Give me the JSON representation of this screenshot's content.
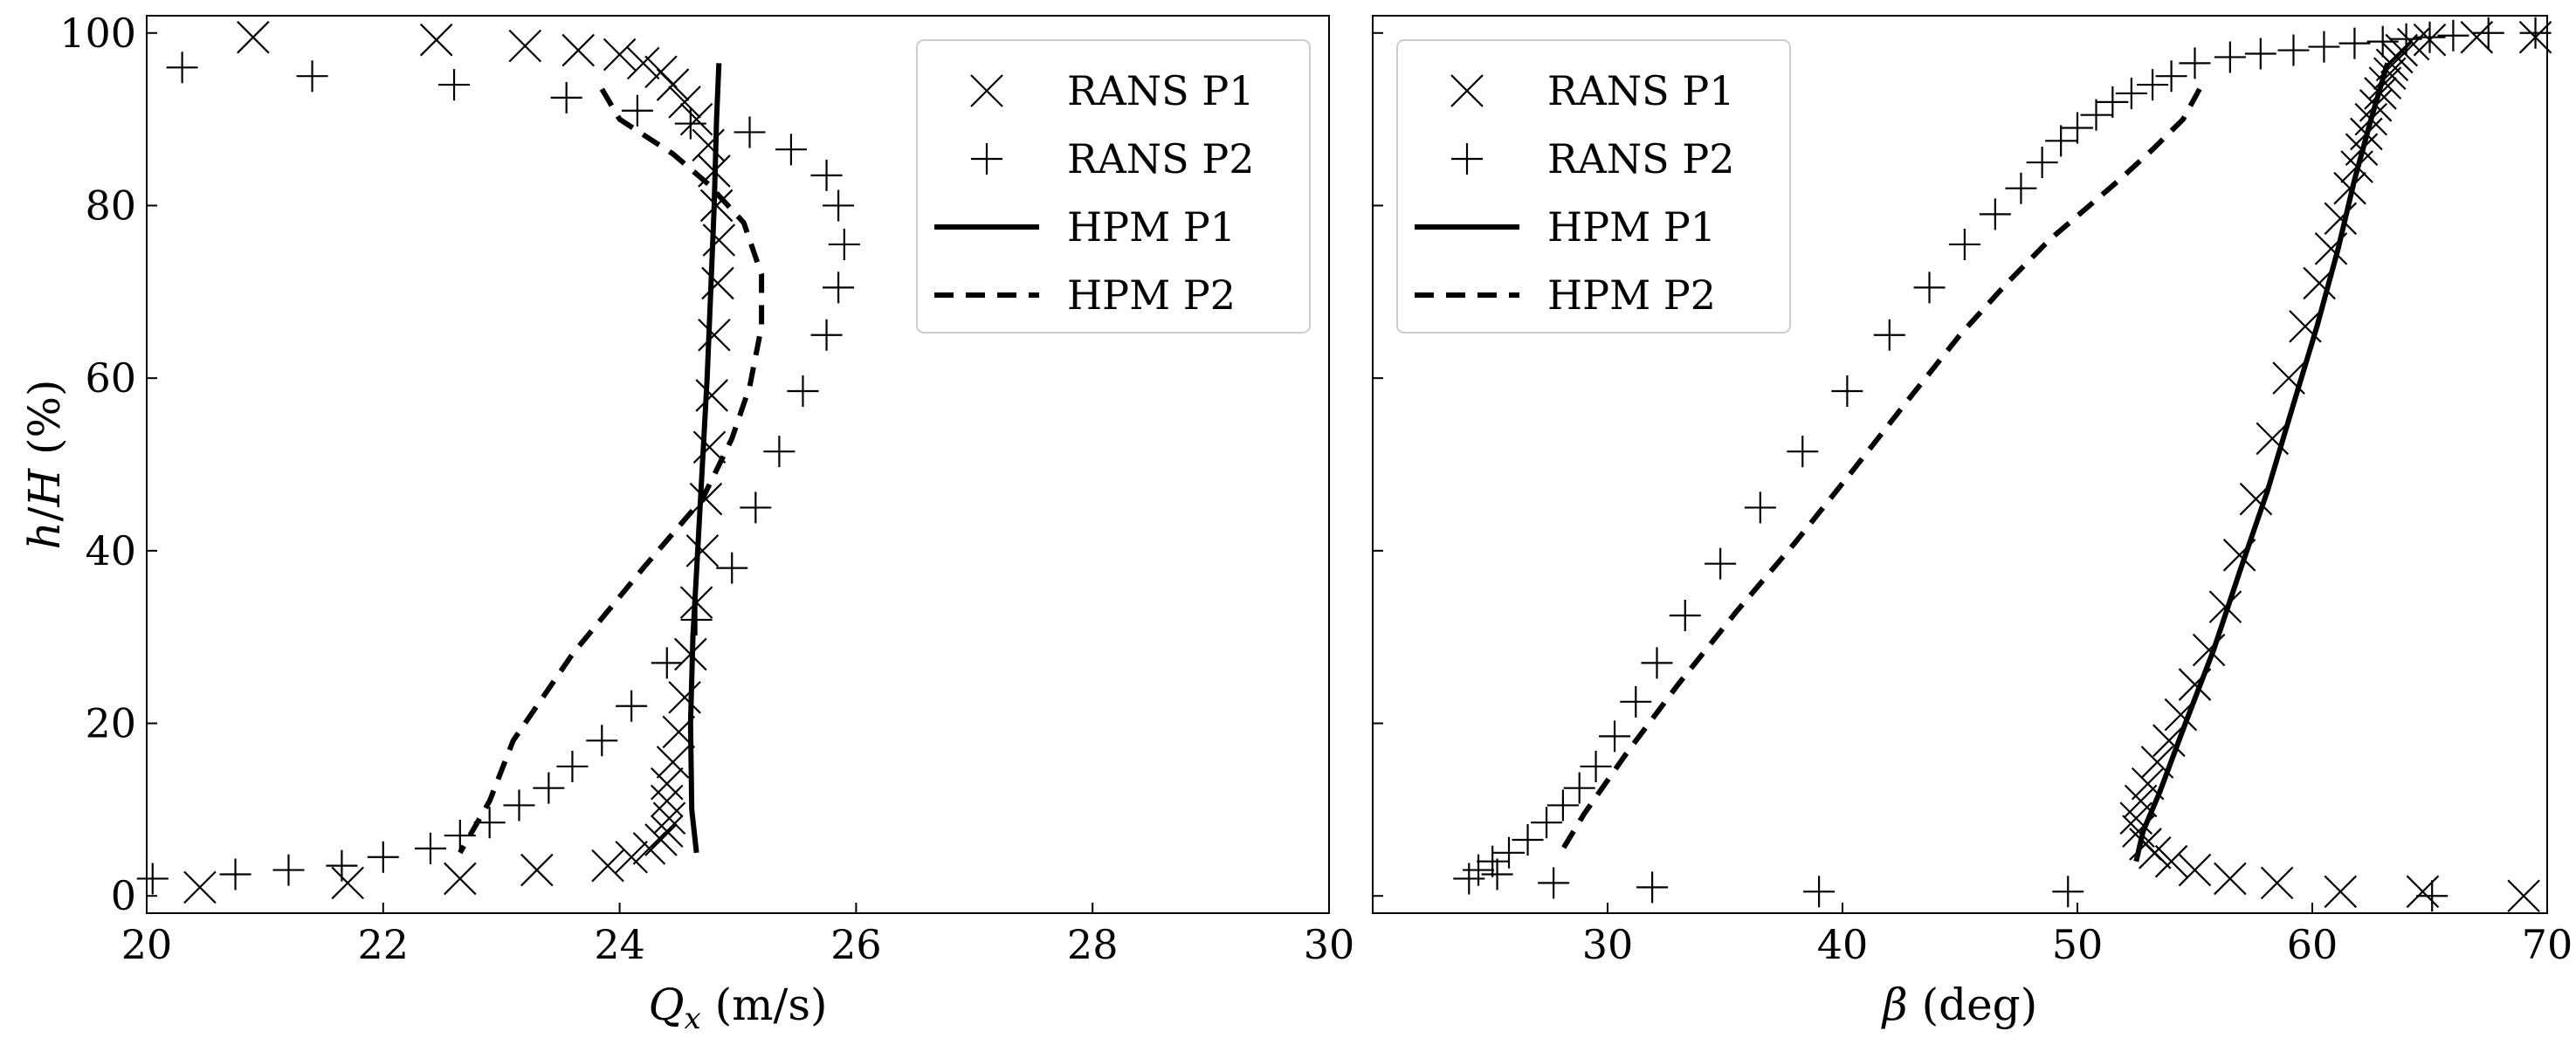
{
  "chart_data": [
    {
      "type": "scatter",
      "xlabel": "Q_x (m/s)",
      "ylabel": "h/H (%)",
      "xlim": [
        20,
        30
      ],
      "ylim": [
        -2,
        102
      ],
      "xticks": [
        "20",
        "22",
        "24",
        "26",
        "28",
        "30"
      ],
      "yticks": [
        "0",
        "20",
        "40",
        "60",
        "80",
        "100"
      ],
      "legend_position": "top-right",
      "series": [
        {
          "name": "RANS P1",
          "kind": "marker-x",
          "x": [
            20.9,
            22.45,
            23.2,
            23.65,
            24.0,
            24.2,
            24.35,
            24.45,
            24.55,
            24.65,
            24.75,
            24.8,
            24.82,
            24.84,
            24.83,
            24.8,
            24.78,
            24.76,
            24.73,
            24.7,
            24.65,
            24.6,
            24.55,
            24.5,
            24.45,
            24.4,
            24.4,
            24.42,
            24.4,
            24.35,
            24.25,
            24.1,
            23.9,
            23.3,
            22.65,
            21.7,
            20.45
          ],
          "y": [
            99.5,
            99.2,
            98.5,
            98.0,
            97.5,
            96.5,
            95.5,
            94.0,
            92.0,
            90.0,
            87.0,
            84.0,
            80.0,
            76.0,
            71.0,
            65.0,
            58.0,
            52.0,
            46.0,
            40.0,
            34.0,
            28.0,
            23.0,
            19.0,
            15.5,
            13.0,
            11.0,
            9.0,
            7.5,
            6.5,
            5.5,
            4.5,
            3.5,
            3.0,
            2.0,
            1.5,
            1.0
          ]
        },
        {
          "name": "RANS P2",
          "kind": "marker-plus",
          "x": [
            20.3,
            21.4,
            22.6,
            23.55,
            24.15,
            24.6,
            25.1,
            25.45,
            25.75,
            25.85,
            25.9,
            25.85,
            25.75,
            25.55,
            25.35,
            25.15,
            24.95,
            24.65,
            24.4,
            24.1,
            23.85,
            23.6,
            23.4,
            23.15,
            22.9,
            22.65,
            22.4,
            22.0,
            21.65,
            21.2,
            20.75,
            20.05
          ],
          "y": [
            96.0,
            95.0,
            94.0,
            92.5,
            91.0,
            89.5,
            88.5,
            86.5,
            83.5,
            80.0,
            75.5,
            70.5,
            65.0,
            58.5,
            51.5,
            45.0,
            38.0,
            32.0,
            27.0,
            22.0,
            18.0,
            15.0,
            12.5,
            10.5,
            8.5,
            7.0,
            5.5,
            4.5,
            3.5,
            3.0,
            2.5,
            2.0
          ]
        },
        {
          "name": "HPM P1",
          "kind": "line-solid",
          "x": [
            24.84,
            24.82,
            24.8,
            24.77,
            24.74,
            24.7,
            24.66,
            24.62,
            24.6,
            24.61,
            24.65
          ],
          "y": [
            96.5,
            90.0,
            80.0,
            70.0,
            60.0,
            50.0,
            40.0,
            30.0,
            20.0,
            10.0,
            5.0
          ]
        },
        {
          "name": "HPM P2",
          "kind": "line-dashed",
          "x": [
            23.85,
            24.0,
            24.45,
            24.75,
            25.05,
            25.2,
            25.2,
            25.1,
            24.95,
            24.7,
            24.2,
            23.6,
            23.1,
            22.9,
            22.65
          ],
          "y": [
            93.5,
            90.0,
            86.0,
            82.5,
            78.0,
            72.0,
            66.0,
            59.0,
            53.0,
            46.0,
            38.0,
            28.0,
            18.0,
            11.0,
            5.0
          ]
        }
      ]
    },
    {
      "type": "scatter",
      "xlabel": "β (deg)",
      "ylabel": "",
      "xlim": [
        20,
        70
      ],
      "ylim": [
        -2,
        102
      ],
      "xticks": [
        "30",
        "40",
        "50",
        "60",
        "70"
      ],
      "yticks": [],
      "legend_position": "top-left",
      "series": [
        {
          "name": "RANS P1",
          "kind": "marker-x",
          "x": [
            69.5,
            67.0,
            65.0,
            64.3,
            63.8,
            63.6,
            63.4,
            63.3,
            63.1,
            62.9,
            62.7,
            62.5,
            62.3,
            62.1,
            61.9,
            61.6,
            61.2,
            60.8,
            60.3,
            59.7,
            59.0,
            58.3,
            57.6,
            56.9,
            56.3,
            55.6,
            55.0,
            54.4,
            53.9,
            53.4,
            53.0,
            52.7,
            52.5,
            52.6,
            52.9,
            53.3,
            54.0,
            55.0,
            56.5,
            58.5,
            61.2,
            64.7,
            69.0
          ],
          "y": [
            99.5,
            99.5,
            99.2,
            98.7,
            98.0,
            97.2,
            96.3,
            95.3,
            94.2,
            93.0,
            91.6,
            90.0,
            88.3,
            86.5,
            84.5,
            82.0,
            78.5,
            75.0,
            71.0,
            66.0,
            60.0,
            53.0,
            46.0,
            39.5,
            33.5,
            28.5,
            24.5,
            21.0,
            18.0,
            15.5,
            13.0,
            11.0,
            9.0,
            7.5,
            6.0,
            5.0,
            4.0,
            3.0,
            2.0,
            1.5,
            0.5,
            0.5,
            0.0
          ]
        },
        {
          "name": "RANS P2",
          "kind": "marker-plus",
          "x": [
            69.5,
            67.5,
            66.0,
            65.0,
            64.0,
            63.0,
            61.8,
            60.5,
            59.2,
            57.8,
            56.5,
            55.0,
            54.0,
            53.2,
            52.3,
            51.5,
            50.8,
            50.0,
            49.3,
            48.5,
            47.6,
            46.5,
            45.2,
            43.7,
            42.0,
            40.2,
            38.3,
            36.5,
            34.8,
            33.3,
            32.1,
            31.2,
            30.3,
            29.5,
            28.8,
            28.1,
            27.4,
            26.6,
            25.8,
            25.1,
            24.5,
            24.1,
            25.3,
            27.7,
            31.9,
            39.0,
            49.6,
            65.1
          ],
          "y": [
            100.0,
            100.0,
            99.7,
            99.5,
            99.3,
            99.0,
            98.8,
            98.4,
            98.0,
            97.6,
            97.2,
            96.5,
            95.0,
            94.0,
            93.0,
            92.0,
            90.5,
            89.0,
            87.5,
            85.0,
            82.0,
            79.0,
            75.5,
            70.5,
            65.0,
            58.5,
            51.5,
            45.0,
            38.5,
            32.5,
            27.0,
            22.5,
            18.5,
            15.0,
            12.5,
            10.5,
            8.5,
            6.5,
            5.0,
            4.0,
            3.0,
            2.0,
            2.5,
            1.5,
            1.0,
            0.5,
            0.5,
            0.0
          ]
        },
        {
          "name": "HPM P1",
          "kind": "line-solid",
          "x": [
            63.2,
            62.5,
            61.8,
            61.1,
            60.2,
            59.2,
            58.1,
            56.9,
            55.8,
            54.6,
            53.5,
            52.8,
            52.5
          ],
          "y": [
            96.5,
            90.0,
            83.0,
            75.0,
            66.0,
            57.0,
            47.0,
            37.5,
            28.5,
            20.0,
            12.0,
            7.5,
            4.0
          ]
        },
        {
          "name": "HPM P2",
          "kind": "line-dashed",
          "x": [
            55.2,
            54.5,
            53.2,
            51.8,
            50.3,
            48.8,
            47.0,
            45.0,
            42.8,
            40.5,
            38.0,
            35.5,
            33.0,
            30.8,
            29.0,
            28.0
          ],
          "y": [
            93.5,
            90.0,
            86.5,
            83.0,
            79.5,
            76.0,
            71.0,
            65.0,
            57.5,
            49.5,
            41.0,
            33.0,
            24.5,
            16.5,
            9.5,
            5.0
          ]
        }
      ]
    }
  ]
}
